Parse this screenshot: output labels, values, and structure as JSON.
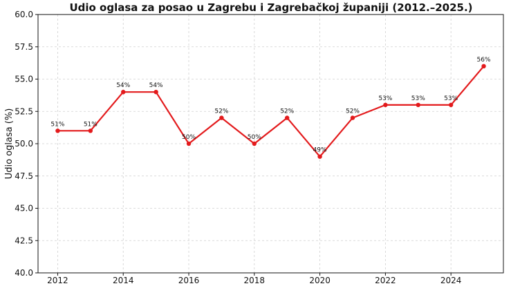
{
  "chart_data": {
    "type": "line",
    "title": "Udio oglasa za posao u Zagrebu i Zagrebačkoj županiji (2012.–2025.)",
    "xlabel": "",
    "ylabel": "Udio oglasa (%)",
    "x": [
      2012,
      2013,
      2014,
      2015,
      2016,
      2017,
      2018,
      2019,
      2020,
      2021,
      2022,
      2023,
      2024,
      2025
    ],
    "series": [
      {
        "values": [
          51,
          51,
          54,
          54,
          50,
          52,
          50,
          52,
          49,
          52,
          53,
          53,
          53,
          56
        ],
        "labels": [
          "51%",
          "51%",
          "54%",
          "54%",
          "50%",
          "52%",
          "50%",
          "52%",
          "49%",
          "52%",
          "53%",
          "53%",
          "53%",
          "56%"
        ],
        "color": "#e31a1c"
      }
    ],
    "xlim": [
      2011.4,
      2025.6
    ],
    "ylim": [
      40.0,
      60.0
    ],
    "xticks": [
      2012,
      2014,
      2016,
      2018,
      2020,
      2022,
      2024
    ],
    "yticks": [
      "40.0",
      "42.5",
      "45.0",
      "47.5",
      "50.0",
      "52.5",
      "55.0",
      "57.5",
      "60.0"
    ],
    "grid": true,
    "legend": "none"
  }
}
